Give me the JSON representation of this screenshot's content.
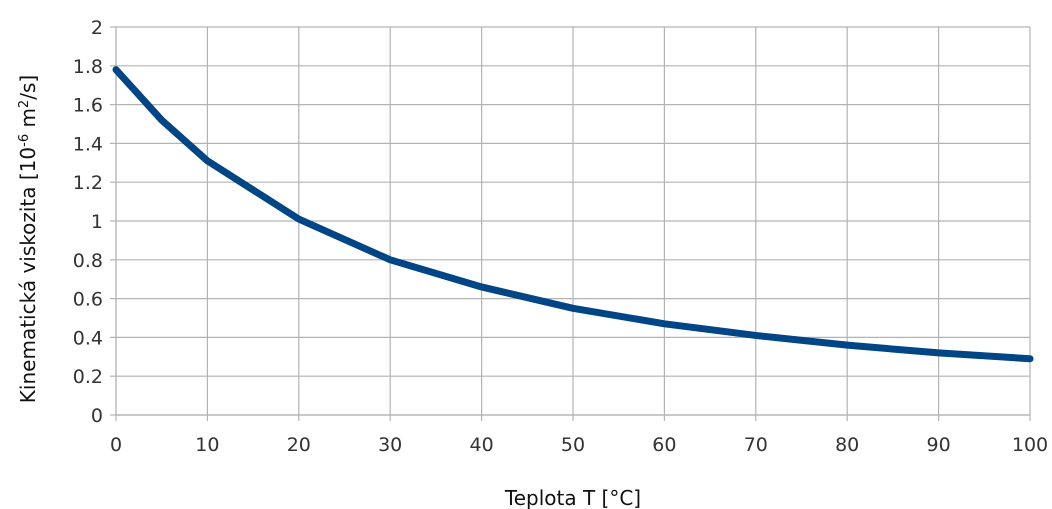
{
  "chart_data": {
    "type": "line",
    "xlabel": "Teplota T [°C]",
    "ylabel_main": "Kinematická viskozita [10",
    "ylabel_sup": "-6",
    "ylabel_mid": " m",
    "ylabel_sup2": "2",
    "ylabel_end": "/s]",
    "xlim": [
      0,
      100
    ],
    "ylim": [
      0,
      2
    ],
    "x_ticks": [
      "0",
      "10",
      "20",
      "30",
      "40",
      "50",
      "60",
      "70",
      "80",
      "90",
      "100"
    ],
    "y_ticks": [
      "0",
      "0.2",
      "0.4",
      "0.6",
      "0.8",
      "1",
      "1.2",
      "1.4",
      "1.6",
      "1.8",
      "2"
    ],
    "grid": true,
    "line_color": "#004586",
    "series": [
      {
        "x": [
          0,
          5,
          10,
          20,
          30,
          40,
          50,
          60,
          70,
          80,
          90,
          100
        ],
        "values": [
          1.78,
          1.52,
          1.31,
          1.01,
          0.8,
          0.66,
          0.55,
          0.47,
          0.41,
          0.36,
          0.32,
          0.29
        ]
      }
    ]
  }
}
